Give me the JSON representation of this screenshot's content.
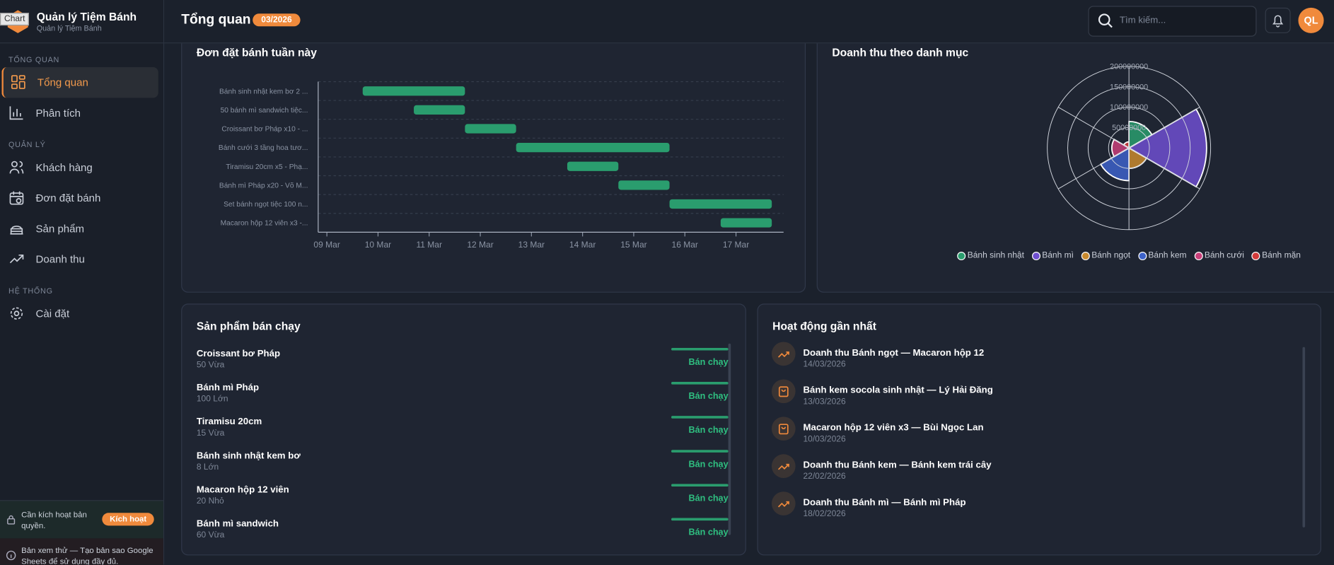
{
  "sidebar": {
    "logo_alt": "Chart",
    "brand": "Quản lý Tiệm Bánh",
    "brand_sub": "Quản lý Tiệm Bánh",
    "sections": [
      {
        "title": "TỔNG QUAN",
        "items": [
          "Tổng quan",
          "Phân tích"
        ]
      },
      {
        "title": "QUẢN LÝ",
        "items": [
          "Khách hàng",
          "Đơn đặt bánh",
          "Sản phẩm",
          "Doanh thu"
        ]
      },
      {
        "title": "HỆ THỐNG",
        "items": [
          "Cài đặt"
        ]
      }
    ],
    "license_text": "Cần kích hoạt bản quyền.",
    "license_button": "Kích hoạt",
    "notice": "Bản xem thử — Tạo bản sao Google Sheets để sử dụng đầy đủ."
  },
  "header": {
    "title": "Tổng quan",
    "period": "03/2026",
    "search_placeholder": "Tìm kiếm...",
    "avatar": "QL"
  },
  "orders_chart": {
    "type": "gantt",
    "title": "Đơn đặt bánh tuần này",
    "categories": [
      "Bánh sinh nhật kem bơ 2 ...",
      "50 bánh mì sandwich tiệc...",
      "Croissant bơ Pháp x10 - ...",
      "Bánh cưới 3 tầng hoa tươ...",
      "Tiramisu 20cm x5 - Phạ...",
      "Bánh mì Pháp x20 - Võ M...",
      "Set bánh ngọt tiệc 100 n...",
      "Macaron hộp 12 viên x3 -..."
    ],
    "start": [
      9.7,
      10.7,
      11.7,
      12.7,
      13.7,
      14.7,
      15.7,
      16.7
    ],
    "end": [
      11.7,
      11.7,
      12.7,
      15.7,
      14.7,
      15.7,
      17.7,
      17.7
    ],
    "color": "#2a9d6e",
    "xlim": [
      8.83,
      17.93
    ],
    "xticks": [
      {
        "value": 9,
        "label": "09 Mar"
      },
      {
        "value": 10,
        "label": "10 Mar"
      },
      {
        "value": 11,
        "label": "11 Mar"
      },
      {
        "value": 12,
        "label": "12 Mar"
      },
      {
        "value": 13,
        "label": "13 Mar"
      },
      {
        "value": 14,
        "label": "14 Mar"
      },
      {
        "value": 15,
        "label": "15 Mar"
      },
      {
        "value": 16,
        "label": "16 Mar"
      },
      {
        "value": 17,
        "label": "17 Mar"
      }
    ],
    "grid": true
  },
  "revenue_chart": {
    "type": "polarArea",
    "title": "Doanh thu theo danh mục",
    "categories": [
      "Bánh sinh nhật",
      "Bánh mì",
      "Bánh ngọt",
      "Bánh kem",
      "Bánh cưới",
      "Bánh mặn"
    ],
    "values": [
      65000000,
      190000000,
      50000000,
      80000000,
      42000000,
      15000000
    ],
    "colors": [
      "#2a9d6e",
      "#6f4fd0",
      "#c98a2e",
      "#3d62c9",
      "#c93f7a",
      "#d23b3b"
    ],
    "rlim": [
      0,
      200000000
    ],
    "rticks": [
      50000000,
      100000000,
      150000000,
      200000000
    ]
  },
  "top_products": {
    "title": "Sản phẩm bán chạy",
    "items": [
      {
        "name": "Croissant bơ Pháp",
        "detail": "50 Vừa",
        "status": "Bán chạy"
      },
      {
        "name": "Bánh mì Pháp",
        "detail": "100 Lớn",
        "status": "Bán chạy"
      },
      {
        "name": "Tiramisu 20cm",
        "detail": "15 Vừa",
        "status": "Bán chạy"
      },
      {
        "name": "Bánh sinh nhật kem bơ",
        "detail": "8 Lớn",
        "status": "Bán chạy"
      },
      {
        "name": "Macaron hộp 12 viên",
        "detail": "20 Nhỏ",
        "status": "Bán chạy"
      },
      {
        "name": "Bánh mì sandwich",
        "detail": "60 Vừa",
        "status": "Bán chạy"
      }
    ]
  },
  "activity": {
    "title": "Hoạt động gần nhất",
    "items": [
      {
        "icon": "trend",
        "title": "Doanh thu Bánh ngọt — Macaron hộp 12",
        "date": "14/03/2026"
      },
      {
        "icon": "bag",
        "title": "Bánh kem socola sinh nhật — Lý Hải Đăng",
        "date": "13/03/2026"
      },
      {
        "icon": "bag",
        "title": "Macaron hộp 12 viên x3 — Bùi Ngọc Lan",
        "date": "10/03/2026"
      },
      {
        "icon": "trend",
        "title": "Doanh thu Bánh kem — Bánh kem trái cây",
        "date": "22/02/2026"
      },
      {
        "icon": "trend",
        "title": "Doanh thu Bánh mì — Bánh mì Pháp",
        "date": "18/02/2026"
      }
    ]
  }
}
